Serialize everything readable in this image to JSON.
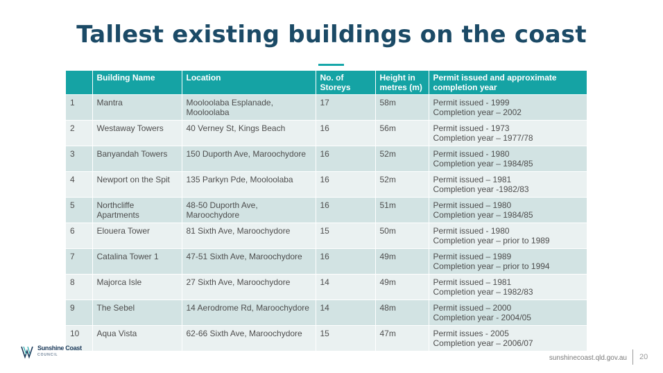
{
  "slide": {
    "title": "Tallest existing buildings on the coast",
    "page_number": "20",
    "footer_url": "sunshinecoast.qld.gov.au"
  },
  "logo": {
    "name": "Sunshine Coast",
    "sub": "COUNCIL"
  },
  "colors": {
    "title": "#1b4a66",
    "header_bg": "#15a3a4",
    "row_odd": "#d2e3e3",
    "row_even": "#eaf1f1"
  },
  "table": {
    "headers": [
      "",
      "Building Name",
      "Location",
      "No. of Storeys",
      "Height in metres (m)",
      "Permit issued and approximate completion year"
    ],
    "rows": [
      {
        "rank": "1",
        "name": "Mantra",
        "location": "Mooloolaba Esplanade, Mooloolaba",
        "storeys": "17",
        "height": "58m",
        "permit": "Permit issued - 1999",
        "completion": "Completion year – 2002"
      },
      {
        "rank": "2",
        "name": "Westaway Towers",
        "location": "40 Verney St, Kings Beach",
        "storeys": "16",
        "height": "56m",
        "permit": "Permit issued - 1973",
        "completion": "Completion year – 1977/78"
      },
      {
        "rank": "3",
        "name": "Banyandah Towers",
        "location": "150 Duporth Ave, Maroochydore",
        "storeys": "16",
        "height": "52m",
        "permit": "Permit issued - 1980",
        "completion": "Completion year – 1984/85"
      },
      {
        "rank": "4",
        "name": "Newport on the Spit",
        "location": "135 Parkyn Pde, Mooloolaba",
        "storeys": "16",
        "height": "52m",
        "permit": "Permit issued – 1981",
        "completion": "Completion year -1982/83"
      },
      {
        "rank": "5",
        "name": "Northcliffe Apartments",
        "location": "48-50 Duporth Ave, Maroochydore",
        "storeys": "16",
        "height": "51m",
        "permit": "Permit issued – 1980",
        "completion": "Completion year – 1984/85"
      },
      {
        "rank": "6",
        "name": "Elouera Tower",
        "location": "81 Sixth Ave, Maroochydore",
        "storeys": "15",
        "height": "50m",
        "permit": "Permit issued - 1980",
        "completion": "Completion year – prior to 1989"
      },
      {
        "rank": "7",
        "name": "Catalina Tower 1",
        "location": "47-51 Sixth Ave, Maroochydore",
        "storeys": "16",
        "height": "49m",
        "permit": "Permit issued – 1989",
        "completion": "Completion year – prior to 1994"
      },
      {
        "rank": "8",
        "name": "Majorca Isle",
        "location": "27 Sixth Ave, Maroochydore",
        "storeys": "14",
        "height": "49m",
        "permit": "Permit issued – 1981",
        "completion": "Completion year – 1982/83"
      },
      {
        "rank": "9",
        "name": "The Sebel",
        "location": "14 Aerodrome Rd, Maroochydore",
        "storeys": "14",
        "height": "48m",
        "permit": "Permit issued – 2000",
        "completion": "Completion year - 2004/05"
      },
      {
        "rank": "10",
        "name": "Aqua Vista",
        "location": "62-66 Sixth Ave, Maroochydore",
        "storeys": "15",
        "height": "47m",
        "permit": "Permit issues - 2005",
        "completion": "Completion year – 2006/07"
      }
    ]
  }
}
